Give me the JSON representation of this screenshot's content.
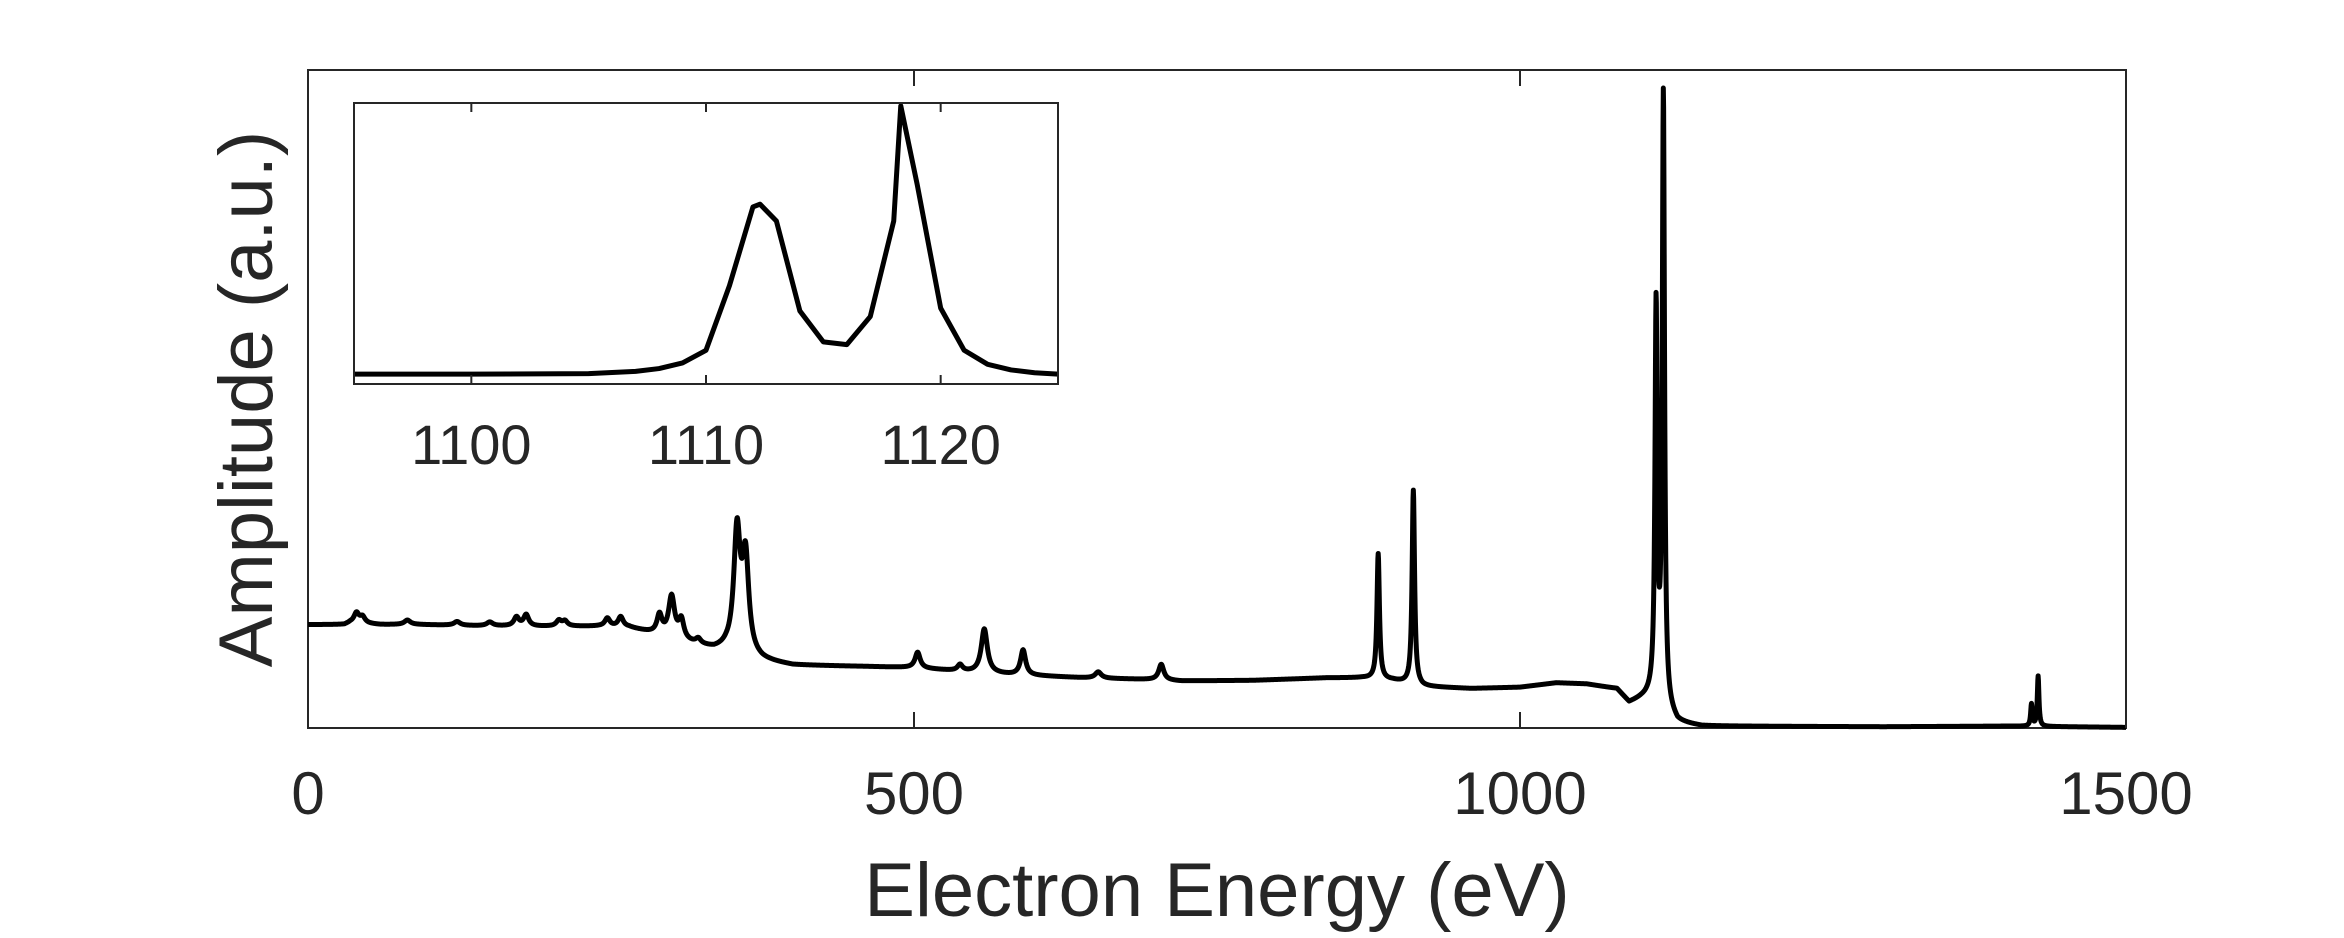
{
  "chart_data": [
    {
      "type": "line",
      "role": "main",
      "xlabel": "Electron Energy (eV)",
      "ylabel": "Amplitude (a.u.)",
      "xlim": [
        0,
        1500
      ],
      "ylim": [
        0,
        1.05
      ],
      "x_ticks": [
        0,
        500,
        1000,
        1500
      ],
      "x_tick_labels": [
        "0",
        "500",
        "1000",
        "1500"
      ],
      "y_ticks": [],
      "grid": false,
      "line_color": "#000000",
      "baseline": [
        [
          0,
          0.165
        ],
        [
          30,
          0.165
        ],
        [
          35,
          0.168
        ],
        [
          60,
          0.165
        ],
        [
          90,
          0.165
        ],
        [
          140,
          0.163
        ],
        [
          190,
          0.162
        ],
        [
          240,
          0.162
        ],
        [
          265,
          0.16
        ],
        [
          290,
          0.148
        ],
        [
          315,
          0.135
        ],
        [
          335,
          0.125
        ],
        [
          345,
          0.125
        ],
        [
          360,
          0.115
        ],
        [
          375,
          0.107
        ],
        [
          400,
          0.1
        ],
        [
          460,
          0.098
        ],
        [
          500,
          0.096
        ],
        [
          540,
          0.09
        ],
        [
          580,
          0.085
        ],
        [
          640,
          0.08
        ],
        [
          700,
          0.077
        ],
        [
          720,
          0.075
        ],
        [
          780,
          0.076
        ],
        [
          840,
          0.08
        ],
        [
          870,
          0.08
        ],
        [
          895,
          0.076
        ],
        [
          920,
          0.066
        ],
        [
          960,
          0.063
        ],
        [
          1000,
          0.065
        ],
        [
          1030,
          0.072
        ],
        [
          1055,
          0.07
        ],
        [
          1080,
          0.062
        ],
        [
          1090,
          0.04
        ],
        [
          1100,
          0.046
        ],
        [
          1110,
          0.05
        ],
        [
          1130,
          0.008
        ],
        [
          1150,
          0.003
        ],
        [
          1300,
          0.002
        ],
        [
          1400,
          0.003
        ],
        [
          1500,
          0.001
        ]
      ],
      "peaks": [
        {
          "x": 40,
          "amplitude": 0.016,
          "width": 2.5
        },
        {
          "x": 45,
          "amplitude": 0.01,
          "width": 2.5
        },
        {
          "x": 82,
          "amplitude": 0.007,
          "width": 3
        },
        {
          "x": 123,
          "amplitude": 0.006,
          "width": 3
        },
        {
          "x": 150,
          "amplitude": 0.006,
          "width": 3
        },
        {
          "x": 172,
          "amplitude": 0.014,
          "width": 2.5
        },
        {
          "x": 180,
          "amplitude": 0.018,
          "width": 2.5
        },
        {
          "x": 207,
          "amplitude": 0.009,
          "width": 2.5
        },
        {
          "x": 212,
          "amplitude": 0.008,
          "width": 2.5
        },
        {
          "x": 247,
          "amplitude": 0.013,
          "width": 2.5
        },
        {
          "x": 258,
          "amplitude": 0.016,
          "width": 2.5
        },
        {
          "x": 290,
          "amplitude": 0.03,
          "width": 2.5
        },
        {
          "x": 300,
          "amplitude": 0.065,
          "width": 3
        },
        {
          "x": 308,
          "amplitude": 0.03,
          "width": 2.5
        },
        {
          "x": 322,
          "amplitude": 0.008,
          "width": 2.5
        },
        {
          "x": 354,
          "amplitude": 0.19,
          "width": 3.2
        },
        {
          "x": 361,
          "amplitude": 0.15,
          "width": 3.2
        },
        {
          "x": 503,
          "amplitude": 0.025,
          "width": 2.5
        },
        {
          "x": 538,
          "amplitude": 0.01,
          "width": 2.5
        },
        {
          "x": 558,
          "amplitude": 0.07,
          "width": 3
        },
        {
          "x": 590,
          "amplitude": 0.04,
          "width": 2.5
        },
        {
          "x": 652,
          "amplitude": 0.01,
          "width": 3
        },
        {
          "x": 704,
          "amplitude": 0.025,
          "width": 2.5
        },
        {
          "x": 883,
          "amplitude": 0.2,
          "width": 1.2
        },
        {
          "x": 912,
          "amplitude": 0.31,
          "width": 1.2
        },
        {
          "x": 1112.3,
          "amplitude": 0.62,
          "width": 1.1
        },
        {
          "x": 1118.3,
          "amplitude": 0.97,
          "width": 1.1
        },
        {
          "x": 1422,
          "amplitude": 0.035,
          "width": 0.8
        },
        {
          "x": 1427.5,
          "amplitude": 0.08,
          "width": 0.8
        }
      ]
    },
    {
      "type": "line",
      "role": "inset",
      "xlim": [
        1095,
        1125
      ],
      "ylim": [
        0,
        1.0
      ],
      "x_ticks": [
        1100,
        1110,
        1120
      ],
      "x_tick_labels": [
        "1100",
        "1110",
        "1120"
      ],
      "y_ticks": [],
      "grid": false,
      "x": [
        1095,
        1100,
        1105,
        1107,
        1108,
        1109,
        1110,
        1111,
        1112,
        1112.3,
        1113,
        1114,
        1115,
        1116,
        1117,
        1118,
        1118.3,
        1119,
        1120,
        1121,
        1122,
        1123,
        1124,
        1125
      ],
      "y": [
        0.035,
        0.035,
        0.037,
        0.045,
        0.055,
        0.075,
        0.12,
        0.35,
        0.63,
        0.64,
        0.58,
        0.26,
        0.15,
        0.14,
        0.24,
        0.58,
        0.99,
        0.71,
        0.27,
        0.12,
        0.07,
        0.05,
        0.04,
        0.035
      ]
    }
  ]
}
